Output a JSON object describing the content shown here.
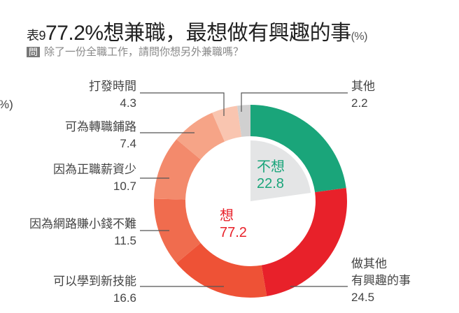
{
  "chart_data": {
    "type": "pie",
    "style": "donut",
    "title_prefix": "表9",
    "title": "77.2%想兼職，最想做有興趣的事",
    "unit": "(%)",
    "left_fragment": "%)",
    "question_tag": "問",
    "question": "除了一份全職工作，請問你想另外兼職嗎？",
    "inner": [
      {
        "name": "不想",
        "value": 22.8,
        "color": "#1aa57a"
      },
      {
        "name": "想",
        "value": 77.2,
        "color": "#e8212a"
      }
    ],
    "slices": [
      {
        "name": "不想",
        "value": 22.8,
        "color": "#1aa57a"
      },
      {
        "name": "做其他有興趣的事",
        "label_lines": [
          "做其他",
          "有興趣的事"
        ],
        "value": 24.5,
        "color": "#e8212a"
      },
      {
        "name": "可以學到新技能",
        "value": 16.6,
        "color": "#ee5236"
      },
      {
        "name": "因為網路賺小錢不難",
        "value": 11.5,
        "color": "#f06c4e"
      },
      {
        "name": "因為正職薪資少",
        "value": 10.7,
        "color": "#f38a6c"
      },
      {
        "name": "可為轉職鋪路",
        "value": 7.4,
        "color": "#f6a487"
      },
      {
        "name": "打發時間",
        "value": 4.3,
        "color": "#f9c5b0"
      },
      {
        "name": "其他",
        "value": 2.2,
        "color": "#d0d0d0"
      }
    ],
    "inner_sector_color": "#e4e5e6"
  }
}
